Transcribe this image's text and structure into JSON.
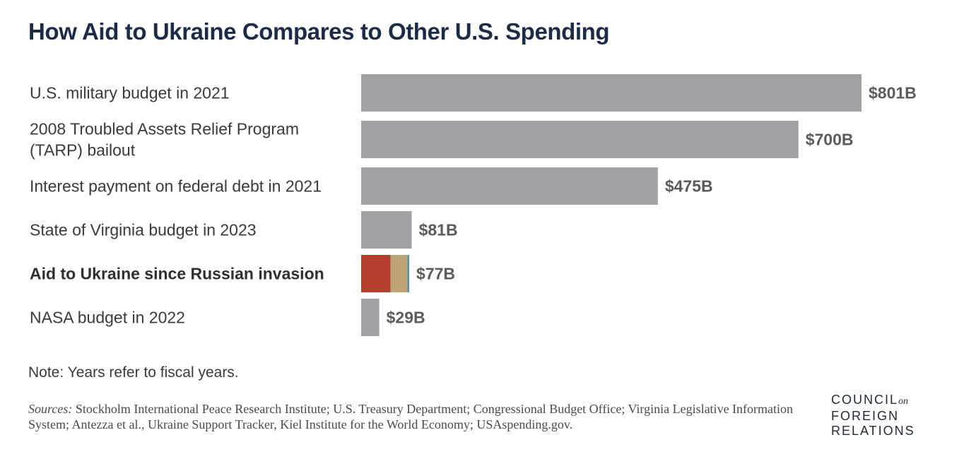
{
  "title": "How Aid to Ukraine Compares to Other U.S. Spending",
  "note": "Note: Years refer to fiscal years.",
  "sources": {
    "lead": "Sources:",
    "text": " Stockholm International Peace Research Institute; U.S. Treasury Department; Congressional Budget Office; Virginia Legislative Information System; Antezza et al., Ukraine Support Tracker, Kiel Institute for the World Economy; USAspending.gov."
  },
  "logo": {
    "line1": "COUNCIL",
    "on": "on",
    "line2": "FOREIGN",
    "line3": "RELATIONS"
  },
  "colors": {
    "bar": "#a0a2a5",
    "ukraine_military": "#b3402e",
    "ukraine_financial": "#bfa377",
    "ukraine_humanitarian": "#5b8f99",
    "title": "#1b2b48"
  },
  "chart_data": {
    "type": "bar",
    "orientation": "horizontal",
    "xlim": [
      0,
      801
    ],
    "grid": false,
    "unit": "billion USD",
    "items": [
      {
        "label_lines": [
          "U.S. military budget in 2021"
        ],
        "value": 801,
        "value_label": "$801B"
      },
      {
        "label_lines": [
          "2008 Troubled Assets Relief Program",
          "(TARP) bailout"
        ],
        "value": 700,
        "value_label": "$700B"
      },
      {
        "label_lines": [
          "Interest payment on federal debt in 2021"
        ],
        "value": 475,
        "value_label": "$475B"
      },
      {
        "label_lines": [
          "State of Virginia budget in 2023"
        ],
        "value": 81,
        "value_label": "$81B"
      },
      {
        "label_lines": [
          "Aid to Ukraine since Russian invasion"
        ],
        "value": 77,
        "value_label": "$77B",
        "emphasis": true,
        "segments": [
          {
            "value": 47,
            "color_key": "ukraine_military"
          },
          {
            "value": 27,
            "color_key": "ukraine_financial"
          },
          {
            "value": 3,
            "color_key": "ukraine_humanitarian"
          }
        ]
      },
      {
        "label_lines": [
          "NASA budget in 2022"
        ],
        "value": 29,
        "value_label": "$29B"
      }
    ]
  }
}
